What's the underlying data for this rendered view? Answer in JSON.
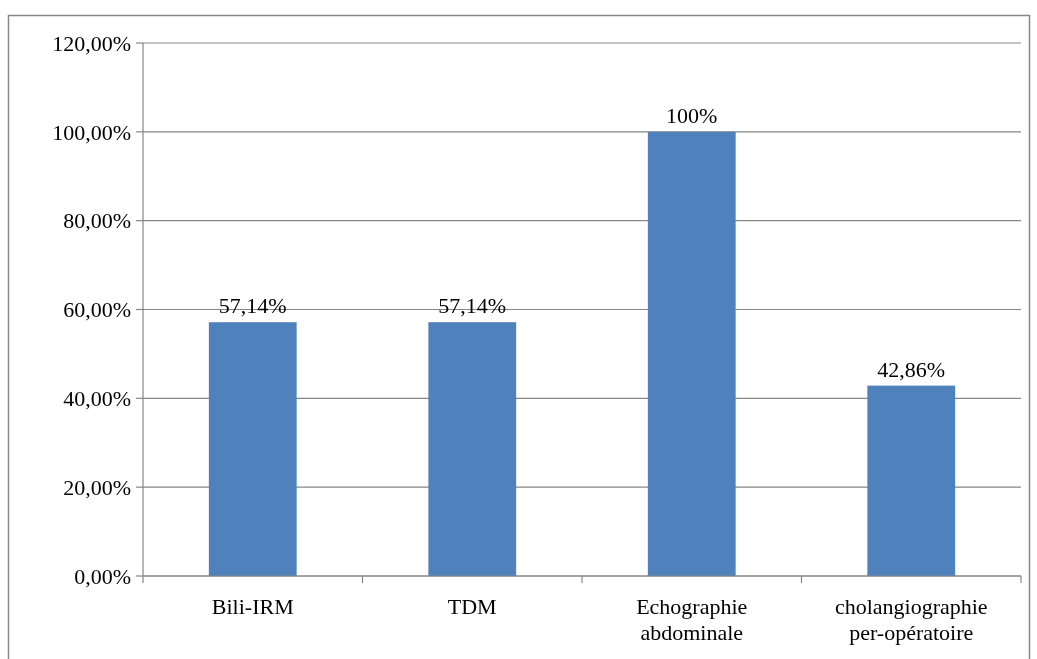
{
  "chart_data": {
    "type": "bar",
    "categories": [
      "Bili-IRM",
      "TDM",
      "Echographie abdominale",
      "cholangiographie per-opératoire"
    ],
    "values": [
      57.14,
      57.14,
      100,
      42.86
    ],
    "value_labels": [
      "57,14%",
      "57,14%",
      "100%",
      "42,86%"
    ],
    "color": "#4f81bd",
    "ylim": [
      0,
      120
    ],
    "yticks": [
      {
        "value": 0,
        "label": "0,00%"
      },
      {
        "value": 20,
        "label": "20,00%"
      },
      {
        "value": 40,
        "label": "40,00%"
      },
      {
        "value": 60,
        "label": "60,00%"
      },
      {
        "value": 80,
        "label": "80,00%"
      },
      {
        "value": 100,
        "label": "100,00%"
      },
      {
        "value": 120,
        "label": "120,00%"
      }
    ],
    "grid": "y"
  }
}
